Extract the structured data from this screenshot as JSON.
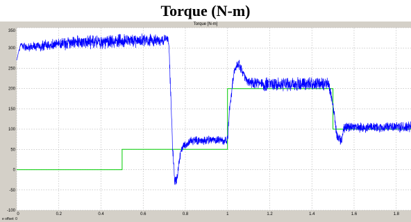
{
  "header": {
    "title": "Torque (N-m)"
  },
  "scope": {
    "window_title": "Torque [N-m]"
  },
  "status": {
    "offset_label": "e offset:",
    "offset_value": "0"
  },
  "chart_data": {
    "type": "line",
    "title": "Torque (N-m)",
    "xlabel": "",
    "ylabel": "",
    "xlim": [
      0,
      1.87
    ],
    "ylim": [
      -100,
      350
    ],
    "xticks": [
      0,
      0.2,
      0.4,
      0.6,
      0.8,
      1,
      1.2,
      1.4,
      1.6,
      1.8
    ],
    "xtick_labels": [
      "0",
      "0.2",
      "0.4",
      "0.6",
      "0.8",
      "1",
      "1.2",
      "1.4",
      "1.6",
      "1.8"
    ],
    "yticks": [
      -100,
      -50,
      0,
      50,
      100,
      150,
      200,
      250,
      300,
      350
    ],
    "ytick_labels": [
      "-100",
      "-50",
      "0",
      "50",
      "100",
      "150",
      "200",
      "250",
      "300",
      "350"
    ],
    "grid": true,
    "colors": {
      "measured": "#0000ff",
      "reference": "#00cc00",
      "plot_bg": "#ffffff",
      "grid": "#b0b0b0",
      "frame": "#d4d0c8"
    },
    "series": [
      {
        "role": "reference",
        "x": [
          0,
          0.5,
          0.5,
          1.0,
          1.0,
          1.5,
          1.5,
          1.87
        ],
        "values": [
          0,
          0,
          50,
          50,
          200,
          200,
          100,
          100
        ]
      },
      {
        "role": "measured",
        "x": [
          0,
          0.02,
          0.05,
          0.1,
          0.2,
          0.3,
          0.4,
          0.5,
          0.6,
          0.7,
          0.72,
          0.73,
          0.74,
          0.75,
          0.76,
          0.77,
          0.78,
          0.8,
          0.82,
          0.85,
          0.9,
          0.95,
          1.0,
          1.01,
          1.03,
          1.05,
          1.08,
          1.1,
          1.2,
          1.3,
          1.4,
          1.48,
          1.5,
          1.52,
          1.54,
          1.55,
          1.56,
          1.6,
          1.7,
          1.8,
          1.87
        ],
        "values": [
          270,
          310,
          300,
          305,
          310,
          315,
          315,
          318,
          318,
          320,
          320,
          200,
          50,
          -30,
          -20,
          20,
          50,
          60,
          70,
          72,
          72,
          72,
          72,
          150,
          240,
          265,
          230,
          215,
          210,
          210,
          212,
          212,
          160,
          80,
          70,
          100,
          105,
          105,
          105,
          105,
          105
        ],
        "noise": [
          0,
          20,
          28,
          30,
          35,
          38,
          40,
          40,
          40,
          30,
          30,
          40,
          40,
          30,
          30,
          30,
          28,
          25,
          25,
          25,
          25,
          25,
          25,
          30,
          28,
          28,
          30,
          35,
          40,
          40,
          40,
          35,
          30,
          30,
          30,
          30,
          28,
          28,
          30,
          30,
          30
        ]
      }
    ]
  }
}
